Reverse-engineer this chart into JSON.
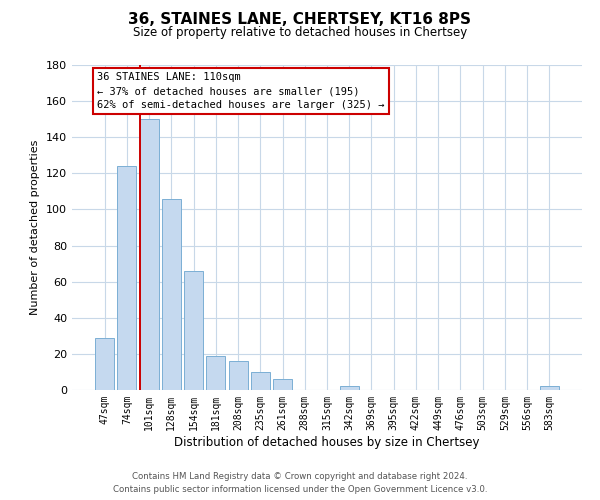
{
  "title": "36, STAINES LANE, CHERTSEY, KT16 8PS",
  "subtitle": "Size of property relative to detached houses in Chertsey",
  "xlabel": "Distribution of detached houses by size in Chertsey",
  "ylabel": "Number of detached properties",
  "bar_labels": [
    "47sqm",
    "74sqm",
    "101sqm",
    "128sqm",
    "154sqm",
    "181sqm",
    "208sqm",
    "235sqm",
    "261sqm",
    "288sqm",
    "315sqm",
    "342sqm",
    "369sqm",
    "395sqm",
    "422sqm",
    "449sqm",
    "476sqm",
    "503sqm",
    "529sqm",
    "556sqm",
    "583sqm"
  ],
  "bar_values": [
    29,
    124,
    150,
    106,
    66,
    19,
    16,
    10,
    6,
    0,
    0,
    2,
    0,
    0,
    0,
    0,
    0,
    0,
    0,
    0,
    2
  ],
  "bar_color": "#c5d9ef",
  "bar_edge_color": "#7bafd4",
  "vline_color": "#cc0000",
  "vline_index": 2,
  "ylim": [
    0,
    180
  ],
  "yticks": [
    0,
    20,
    40,
    60,
    80,
    100,
    120,
    140,
    160,
    180
  ],
  "annotation_title": "36 STAINES LANE: 110sqm",
  "annotation_line1": "← 37% of detached houses are smaller (195)",
  "annotation_line2": "62% of semi-detached houses are larger (325) →",
  "annotation_box_color": "#ffffff",
  "annotation_box_edge": "#cc0000",
  "footer_line1": "Contains HM Land Registry data © Crown copyright and database right 2024.",
  "footer_line2": "Contains public sector information licensed under the Open Government Licence v3.0.",
  "background_color": "#ffffff",
  "grid_color": "#c8d8e8"
}
